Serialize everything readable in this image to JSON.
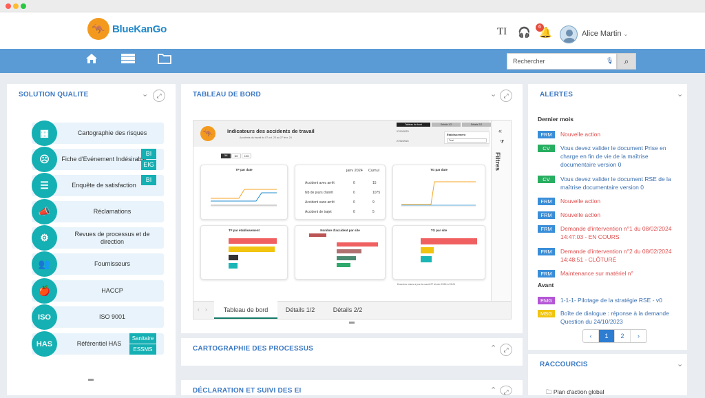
{
  "header": {
    "logo_text": "BlueKanGo",
    "text_size_icon_label": "TI",
    "notifications_count": "6",
    "user_name": "Alice Martin"
  },
  "nav": {
    "search_placeholder": "Rechercher"
  },
  "solution_qualite": {
    "title": "SOLUTION QUALITE",
    "items": [
      {
        "label": "Cartographie des risques"
      },
      {
        "label": "Fiche d'Evénement Indésirable",
        "tags": [
          "BI",
          "EIG"
        ]
      },
      {
        "label": "Enquête de satisfaction",
        "tags": [
          "BI"
        ]
      },
      {
        "label": "Réclamations"
      },
      {
        "label": "Revues de processus et de direction"
      },
      {
        "label": "Fournisseurs"
      },
      {
        "label": "HACCP"
      },
      {
        "label": "ISO 9001",
        "icon_text": "ISO"
      },
      {
        "label": "Référentiel HAS",
        "icon_text": "HAS",
        "tags": [
          "Sanitaire",
          "ESSMS"
        ]
      }
    ]
  },
  "tableau": {
    "title": "TABLEAU DE BORD",
    "report_title": "Indicateurs des accidents de travail",
    "report_subtitle": "Accidents du travail du 07 oct. 23 au 27 févr. 24",
    "date1": "07/10/2023",
    "date2": "27/02/2024",
    "header_tabs": [
      "Tableau de bord",
      "Détails 1/2",
      "Détails 2/2"
    ],
    "etab_label": "Établissement",
    "etab_value": "Tout",
    "period_buttons": [
      "3M",
      "6M",
      "12M"
    ],
    "filters_label": "Filtres",
    "kpi": {
      "col1": "janv 2024",
      "col2": "Cumul",
      "rows": [
        {
          "label": "Accident avec arrêt",
          "v1": "0",
          "v2": "15"
        },
        {
          "label": "Nb de jours d'arrêt",
          "v1": "0",
          "v2": "1075"
        },
        {
          "label": "Accident sans arrêt",
          "v1": "0",
          "v2": "9"
        },
        {
          "label": "Accident de trajet",
          "v1": "0",
          "v2": "5"
        }
      ]
    },
    "chart_titles": [
      "TF par date",
      "TG par date",
      "TF par établissement",
      "Nombre d'accident par site",
      "TG par site"
    ],
    "updated": "Données mises à jour le mardi 27 février 2024 à 23:01",
    "bottom_tabs": [
      "Tableau de bord",
      "Détails 1/2",
      "Détails 2/2"
    ]
  },
  "sections": {
    "cartographie": "CARTOGRAPHIE DES PROCESSUS",
    "declaration": "DÉCLARATION ET SUIVI DES EI"
  },
  "alertes": {
    "title": "ALERTES",
    "group1": "Dernier mois",
    "group2": "Avant",
    "items": [
      {
        "tag": "FRM",
        "color": "#3a8ed8",
        "text": "Nouvelle action"
      },
      {
        "tag": "CV",
        "color": "#27ae60",
        "text": "Vous devez valider le document Prise en charge en fin de vie de la maîtrise documentaire version 0"
      },
      {
        "tag": "CV",
        "color": "#27ae60",
        "text": "Vous devez valider le document RSE de la maîtrise documentaire version 0"
      },
      {
        "tag": "FRM",
        "color": "#3a8ed8",
        "text": "Nouvelle action"
      },
      {
        "tag": "FRM",
        "color": "#3a8ed8",
        "text": "Nouvelle action"
      },
      {
        "tag": "FRM",
        "color": "#3a8ed8",
        "text": "Demande d'intervention n°1 du 08/02/2024 14:47:03 - EN COURS"
      },
      {
        "tag": "FRM",
        "color": "#3a8ed8",
        "text": "Demande d'intervention n°2 du 08/02/2024 14:48:51 - CLÔTURÉ"
      },
      {
        "tag": "FRM",
        "color": "#3a8ed8",
        "text": "Maintenance sur matériel n°"
      },
      {
        "tag": "EMG",
        "color": "#b455d6",
        "text": "1-1-1- Pilotage de la stratégie RSE - v0"
      },
      {
        "tag": "MSG",
        "color": "#f1c40f",
        "text": "Boîte de dialogue : réponse à la demande Question du 24/10/2023"
      }
    ],
    "pages": [
      "‹",
      "1",
      "2",
      "›"
    ]
  },
  "raccourcis": {
    "title": "RACCOURCIS",
    "first_item": "Plan d'action global"
  }
}
